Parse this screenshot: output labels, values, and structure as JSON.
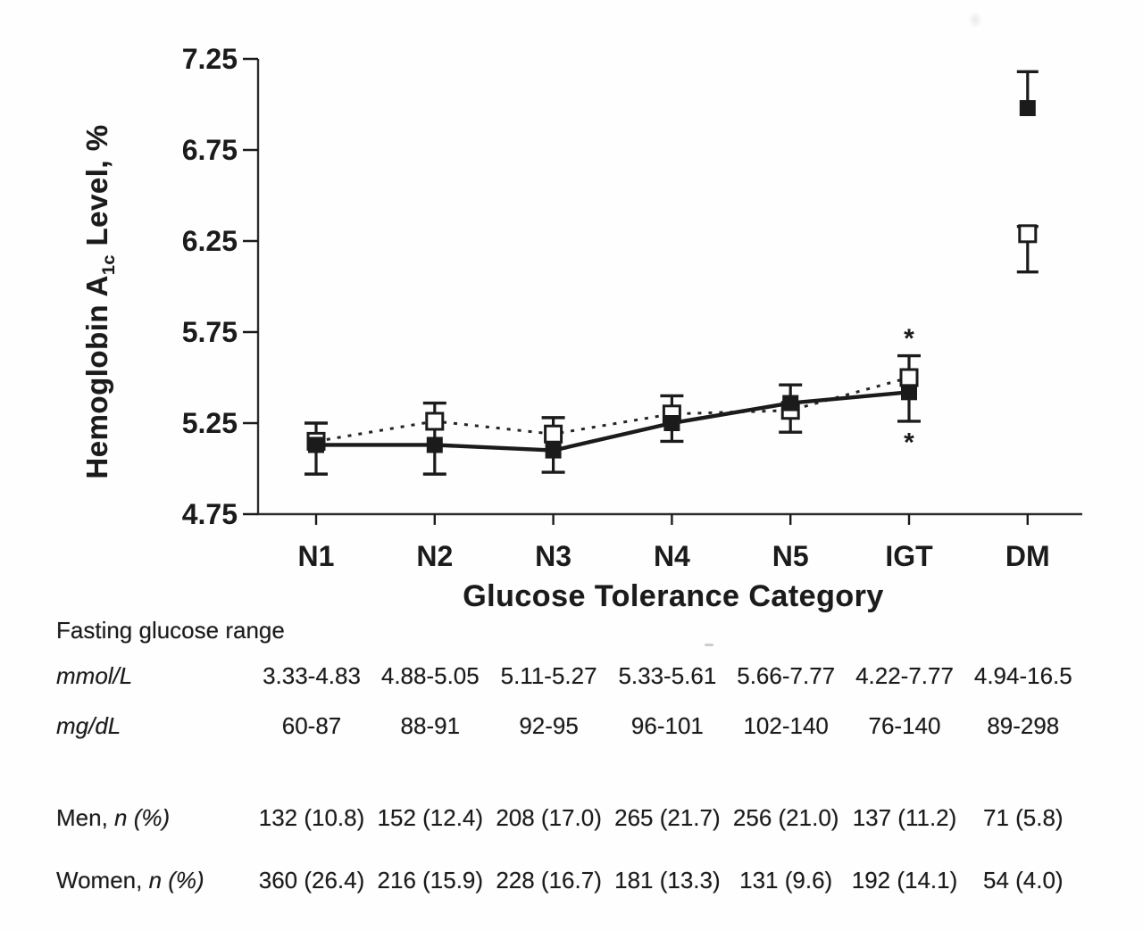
{
  "chart_data": {
    "type": "line",
    "title": "",
    "xlabel": "Glucose Tolerance Category",
    "ylabel": "Hemoglobin A1c Level, %",
    "ylabel_rich": {
      "prefix": "Hemoglobin A",
      "sub": "1c",
      "suffix": " Level, %"
    },
    "categories": [
      "N1",
      "N2",
      "N3",
      "N4",
      "N5",
      "IGT",
      "DM"
    ],
    "ylim": [
      4.75,
      7.25
    ],
    "yticks": [
      "7.25",
      "6.75",
      "6.25",
      "5.75",
      "5.25",
      "4.75"
    ],
    "grid": false,
    "legend": "none",
    "lines_connect_first_n": 6,
    "series": [
      {
        "name": "filled-square-solid-line",
        "marker": "filled-square",
        "line_style": "solid",
        "values": [
          5.13,
          5.13,
          5.1,
          5.25,
          5.36,
          5.42,
          6.98
        ]
      },
      {
        "name": "open-square-dotted-line",
        "marker": "open-square",
        "line_style": "dotted",
        "values": [
          5.15,
          5.26,
          5.19,
          5.3,
          5.32,
          5.5,
          6.29
        ]
      }
    ],
    "error_bars_shared": [
      {
        "category": "N1",
        "low": 4.97,
        "high": 5.25
      },
      {
        "category": "N2",
        "low": 4.97,
        "high": 5.36
      },
      {
        "category": "N3",
        "low": 4.98,
        "high": 5.28
      },
      {
        "category": "N4",
        "low": 5.15,
        "high": 5.4
      },
      {
        "category": "N5",
        "low": 5.2,
        "high": 5.46
      },
      {
        "category": "IGT",
        "low": 5.26,
        "high": 5.62
      }
    ],
    "error_bars_dm": [
      {
        "series": "filled-square-solid-line",
        "from": 6.98,
        "to": 7.18,
        "caps": [
          "top"
        ],
        "cap_half": 12
      },
      {
        "series": "open-square-dotted-line",
        "from": 6.33,
        "to": 6.08,
        "caps": [
          "top",
          "bottom"
        ],
        "cap_half": 12
      }
    ],
    "annotations": [
      {
        "text": "*",
        "category": "IGT",
        "value": 5.72,
        "position": "above-error-bar"
      },
      {
        "text": "*",
        "category": "IGT",
        "value": 5.15,
        "position": "below-error-bar"
      }
    ]
  },
  "table": {
    "section_label": "Fasting glucose range",
    "rows": [
      {
        "id": "mmol-range",
        "label_regular": "",
        "label_italic": "mmol/L",
        "values": [
          "3.33-4.83",
          "4.88-5.05",
          "5.11-5.27",
          "5.33-5.61",
          "5.66-7.77",
          "4.22-7.77",
          "4.94-16.5"
        ]
      },
      {
        "id": "mgdl-range",
        "label_regular": "",
        "label_italic": "mg/dL",
        "values": [
          "60-87",
          "88-91",
          "92-95",
          "96-101",
          "102-140",
          "76-140",
          "89-298"
        ]
      },
      {
        "id": "men-count",
        "label_regular": "Men, ",
        "label_italic": "n (%)",
        "values": [
          "132 (10.8)",
          "152 (12.4)",
          "208 (17.0)",
          "265 (21.7)",
          "256 (21.0)",
          "137 (11.2)",
          "71 (5.8)"
        ]
      },
      {
        "id": "women-count",
        "label_regular": "Women, ",
        "label_italic": "n (%)",
        "values": [
          "360 (26.4)",
          "216 (15.9)",
          "228 (16.7)",
          "181 (13.3)",
          "131 (9.6)",
          "192 (14.1)",
          "54 (4.0)"
        ]
      }
    ]
  }
}
